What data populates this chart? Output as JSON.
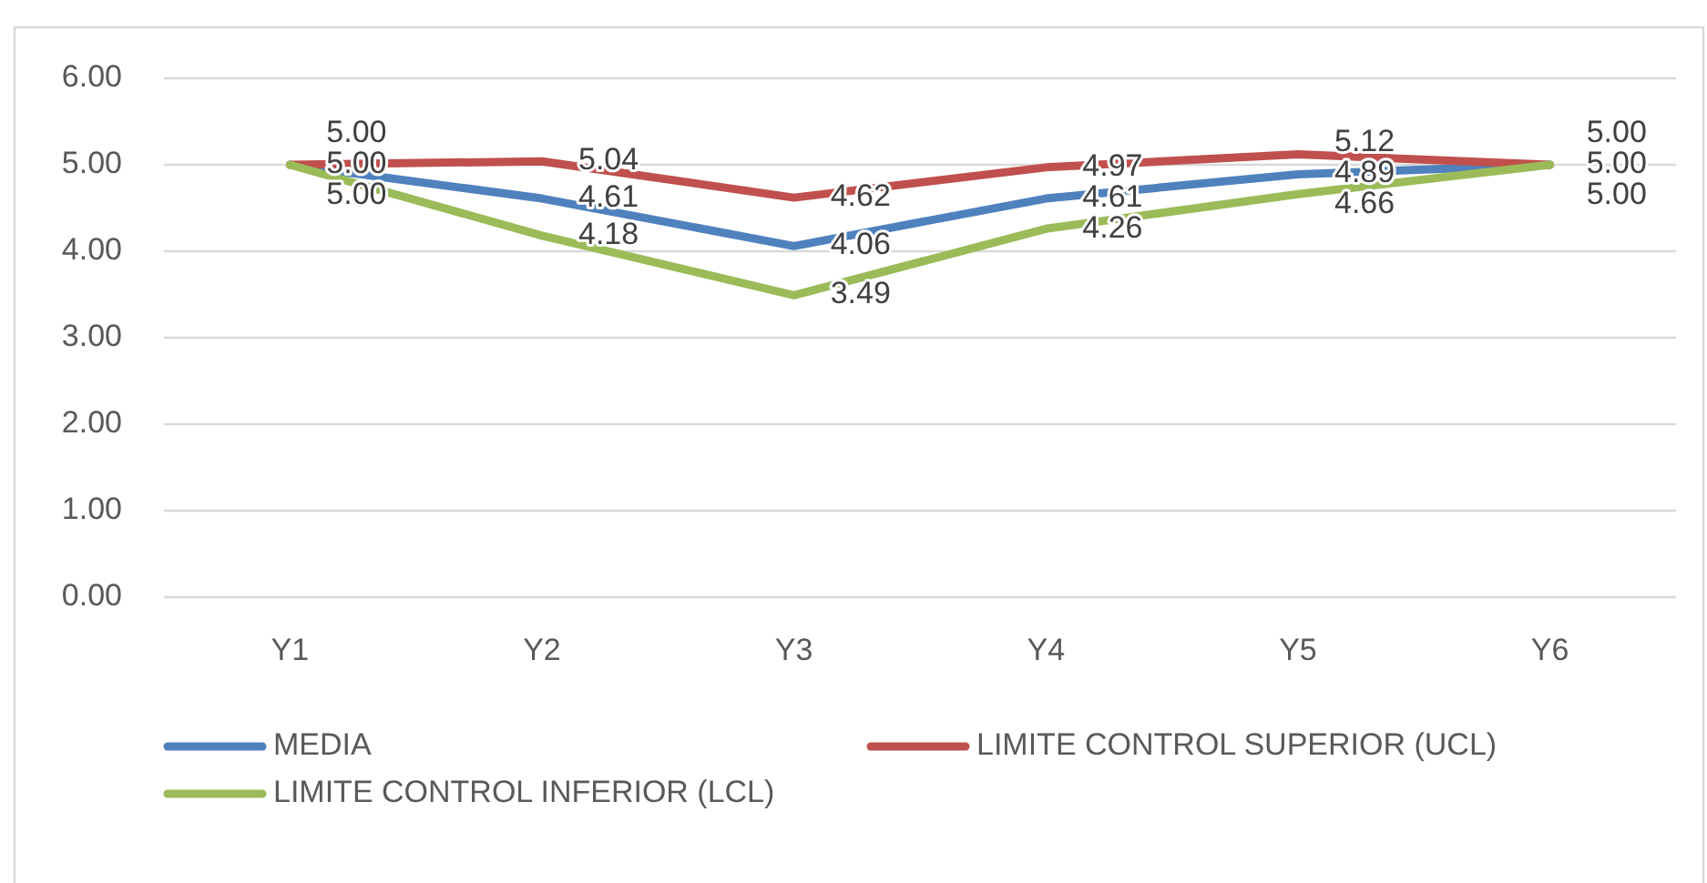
{
  "chart_data": {
    "type": "line",
    "categories": [
      "Y1",
      "Y2",
      "Y3",
      "Y4",
      "Y5",
      "Y6"
    ],
    "series": [
      {
        "name": "MEDIA",
        "color": "#4f81bd",
        "values": [
          5.0,
          4.61,
          4.06,
          4.61,
          4.89,
          5.0
        ],
        "value_labels": [
          "5.00",
          "4.61",
          "4.06",
          "4.61",
          "4.89",
          "5.00"
        ]
      },
      {
        "name": "LIMITE CONTROL SUPERIOR (UCL)",
        "color": "#c0504d",
        "values": [
          5.0,
          5.04,
          4.62,
          4.97,
          5.12,
          5.0
        ],
        "value_labels": [
          "5.00",
          "5.04",
          "4.62",
          "4.97",
          "5.12",
          "5.00"
        ]
      },
      {
        "name": "LIMITE CONTROL INFERIOR (LCL)",
        "color": "#9bbb59",
        "values": [
          5.0,
          4.18,
          3.49,
          4.26,
          4.66,
          5.0
        ],
        "value_labels": [
          "5.00",
          "4.18",
          "3.49",
          "4.26",
          "4.66",
          "5.00"
        ]
      }
    ],
    "ylim": [
      0,
      6
    ],
    "yticks": [
      {
        "value": 0,
        "label": "0.00"
      },
      {
        "value": 1,
        "label": "1.00"
      },
      {
        "value": 2,
        "label": "2.00"
      },
      {
        "value": 3,
        "label": "3.00"
      },
      {
        "value": 4,
        "label": "4.00"
      },
      {
        "value": 5,
        "label": "5.00"
      },
      {
        "value": 6,
        "label": "6.00"
      }
    ],
    "grid": "y",
    "legend": "bottom"
  }
}
